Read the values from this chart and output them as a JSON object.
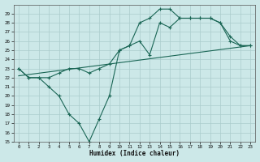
{
  "x": [
    0,
    1,
    2,
    3,
    4,
    5,
    6,
    7,
    8,
    9,
    10,
    11,
    12,
    13,
    14,
    15,
    16,
    17,
    18,
    19,
    20,
    21,
    22,
    23
  ],
  "line_jagged": [
    23,
    22,
    22,
    21,
    20,
    18,
    17,
    15,
    17.5,
    20,
    25,
    25.5,
    28,
    28.5,
    29.5,
    29.5,
    28.5,
    28.5,
    28.5,
    28.5,
    28,
    26,
    25.5,
    25.5
  ],
  "line_upper": [
    23,
    22,
    22,
    22,
    22.5,
    23,
    23,
    22.5,
    23,
    23.5,
    25,
    25.5,
    26,
    24.5,
    28,
    27.5,
    28.5,
    28.5,
    28.5,
    28.5,
    28,
    26.5,
    25.5,
    25.5
  ],
  "line_trend_x": [
    0,
    23
  ],
  "line_trend_y": [
    22.2,
    25.5
  ],
  "background_color": "#cce8e8",
  "grid_color": "#aacccc",
  "line_color": "#1a6655",
  "xlabel": "Humidex (Indice chaleur)",
  "ylim": [
    15,
    30
  ],
  "xlim": [
    -0.5,
    23.5
  ],
  "yticks": [
    15,
    16,
    17,
    18,
    19,
    20,
    21,
    22,
    23,
    24,
    25,
    26,
    27,
    28,
    29
  ],
  "xticks": [
    0,
    1,
    2,
    3,
    4,
    5,
    6,
    7,
    8,
    9,
    10,
    11,
    12,
    13,
    14,
    15,
    16,
    17,
    18,
    19,
    20,
    21,
    22,
    23
  ]
}
